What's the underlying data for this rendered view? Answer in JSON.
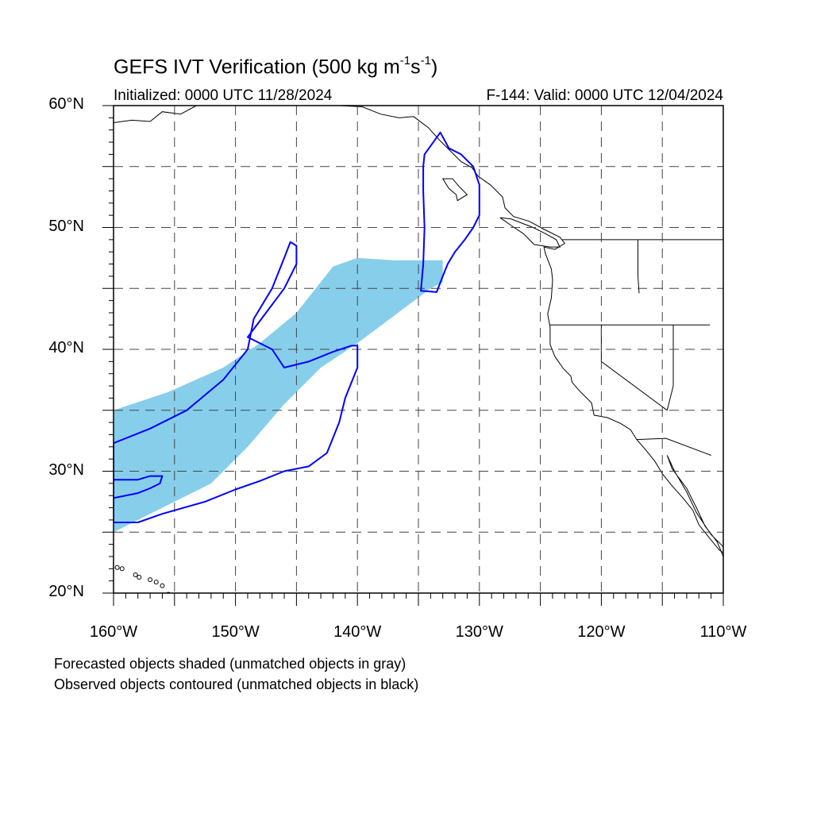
{
  "title": {
    "main": "GEFS IVT Verification (500 kg m",
    "exp1": "-1",
    "mid": "s",
    "exp2": "-1",
    "end": ")"
  },
  "subtitle": {
    "left": "Initialized: 0000 UTC 11/28/2024",
    "right": "F-144: Valid: 0000 UTC 12/04/2024"
  },
  "map": {
    "lon_range": [
      -160,
      -110
    ],
    "lat_range": [
      20,
      60
    ],
    "lat_ticks": [
      {
        "lat": 60,
        "label": "60°N"
      },
      {
        "lat": 50,
        "label": "50°N"
      },
      {
        "lat": 40,
        "label": "40°N"
      },
      {
        "lat": 30,
        "label": "30°N"
      },
      {
        "lat": 20,
        "label": "20°N"
      }
    ],
    "lon_ticks": [
      {
        "lon": -160,
        "label": "160°W"
      },
      {
        "lon": -150,
        "label": "150°W"
      },
      {
        "lon": -140,
        "label": "140°W"
      },
      {
        "lon": -130,
        "label": "130°W"
      },
      {
        "lon": -120,
        "label": "120°W"
      },
      {
        "lon": -110,
        "label": "110°W"
      }
    ],
    "gridline_style": "dashed",
    "colors": {
      "forecast_fill": "#87ceeb",
      "observed_contour": "#0000ff",
      "coastline": "#000000"
    },
    "forecast_object": [
      [
        -160,
        35
      ],
      [
        -155.5,
        36.5
      ],
      [
        -151,
        38.5
      ],
      [
        -148,
        40.5
      ],
      [
        -145,
        43
      ],
      [
        -142,
        46.8
      ],
      [
        -140,
        47.5
      ],
      [
        -137,
        47.3
      ],
      [
        -133,
        47.3
      ],
      [
        -133,
        45.5
      ],
      [
        -134,
        45
      ],
      [
        -136,
        43.5
      ],
      [
        -138,
        42
      ],
      [
        -140,
        40.5
      ],
      [
        -143,
        38.5
      ],
      [
        -146,
        35.5
      ],
      [
        -149,
        32
      ],
      [
        -152,
        29
      ],
      [
        -155,
        27.5
      ],
      [
        -160,
        25
      ]
    ],
    "observed_objects": [
      [
        [
          -160,
          32.3
        ],
        [
          -157,
          33.5
        ],
        [
          -154,
          35
        ],
        [
          -151,
          37.5
        ],
        [
          -149,
          40
        ],
        [
          -148.5,
          42.5
        ],
        [
          -147,
          45
        ],
        [
          -146,
          47.5
        ],
        [
          -145.5,
          48.8
        ],
        [
          -145,
          48.5
        ],
        [
          -145,
          47
        ],
        [
          -146,
          45
        ],
        [
          -147.5,
          43
        ],
        [
          -149,
          41
        ],
        [
          -147,
          40
        ],
        [
          -146,
          38.5
        ],
        [
          -144,
          39
        ],
        [
          -142,
          39.8
        ],
        [
          -140.5,
          40.3
        ],
        [
          -140,
          40.3
        ],
        [
          -140,
          38.5
        ],
        [
          -141,
          36
        ],
        [
          -141.5,
          34
        ],
        [
          -142.5,
          31.5
        ],
        [
          -144,
          30.4
        ],
        [
          -146,
          30
        ],
        [
          -148,
          29.2
        ],
        [
          -150,
          28.5
        ],
        [
          -152.5,
          27.5
        ],
        [
          -156,
          26.5
        ],
        [
          -158,
          25.8
        ],
        [
          -160,
          25.8
        ]
      ],
      [
        [
          -160,
          27.8
        ],
        [
          -158,
          28.2
        ],
        [
          -157,
          28.6
        ],
        [
          -156.2,
          29
        ],
        [
          -156,
          29.6
        ],
        [
          -157,
          29.6
        ],
        [
          -158,
          29.3
        ],
        [
          -160,
          29.3
        ]
      ],
      [
        [
          -134.5,
          56
        ],
        [
          -133.2,
          57.8
        ],
        [
          -132.5,
          56.5
        ],
        [
          -131.5,
          56
        ],
        [
          -130.5,
          55
        ],
        [
          -130,
          53.5
        ],
        [
          -130,
          51
        ],
        [
          -130.5,
          50
        ],
        [
          -131.2,
          49
        ],
        [
          -132,
          48
        ],
        [
          -132.6,
          47
        ],
        [
          -133,
          46
        ],
        [
          -133.5,
          44.7
        ],
        [
          -134.8,
          44.8
        ],
        [
          -134.6,
          47
        ],
        [
          -134.5,
          50
        ],
        [
          -134.6,
          53
        ],
        [
          -134.6,
          55
        ]
      ]
    ]
  },
  "notes": {
    "forecast": "Forecasted objects shaded (unmatched objects in gray)",
    "observed": "Observed objects contoured (unmatched objects in black)"
  }
}
